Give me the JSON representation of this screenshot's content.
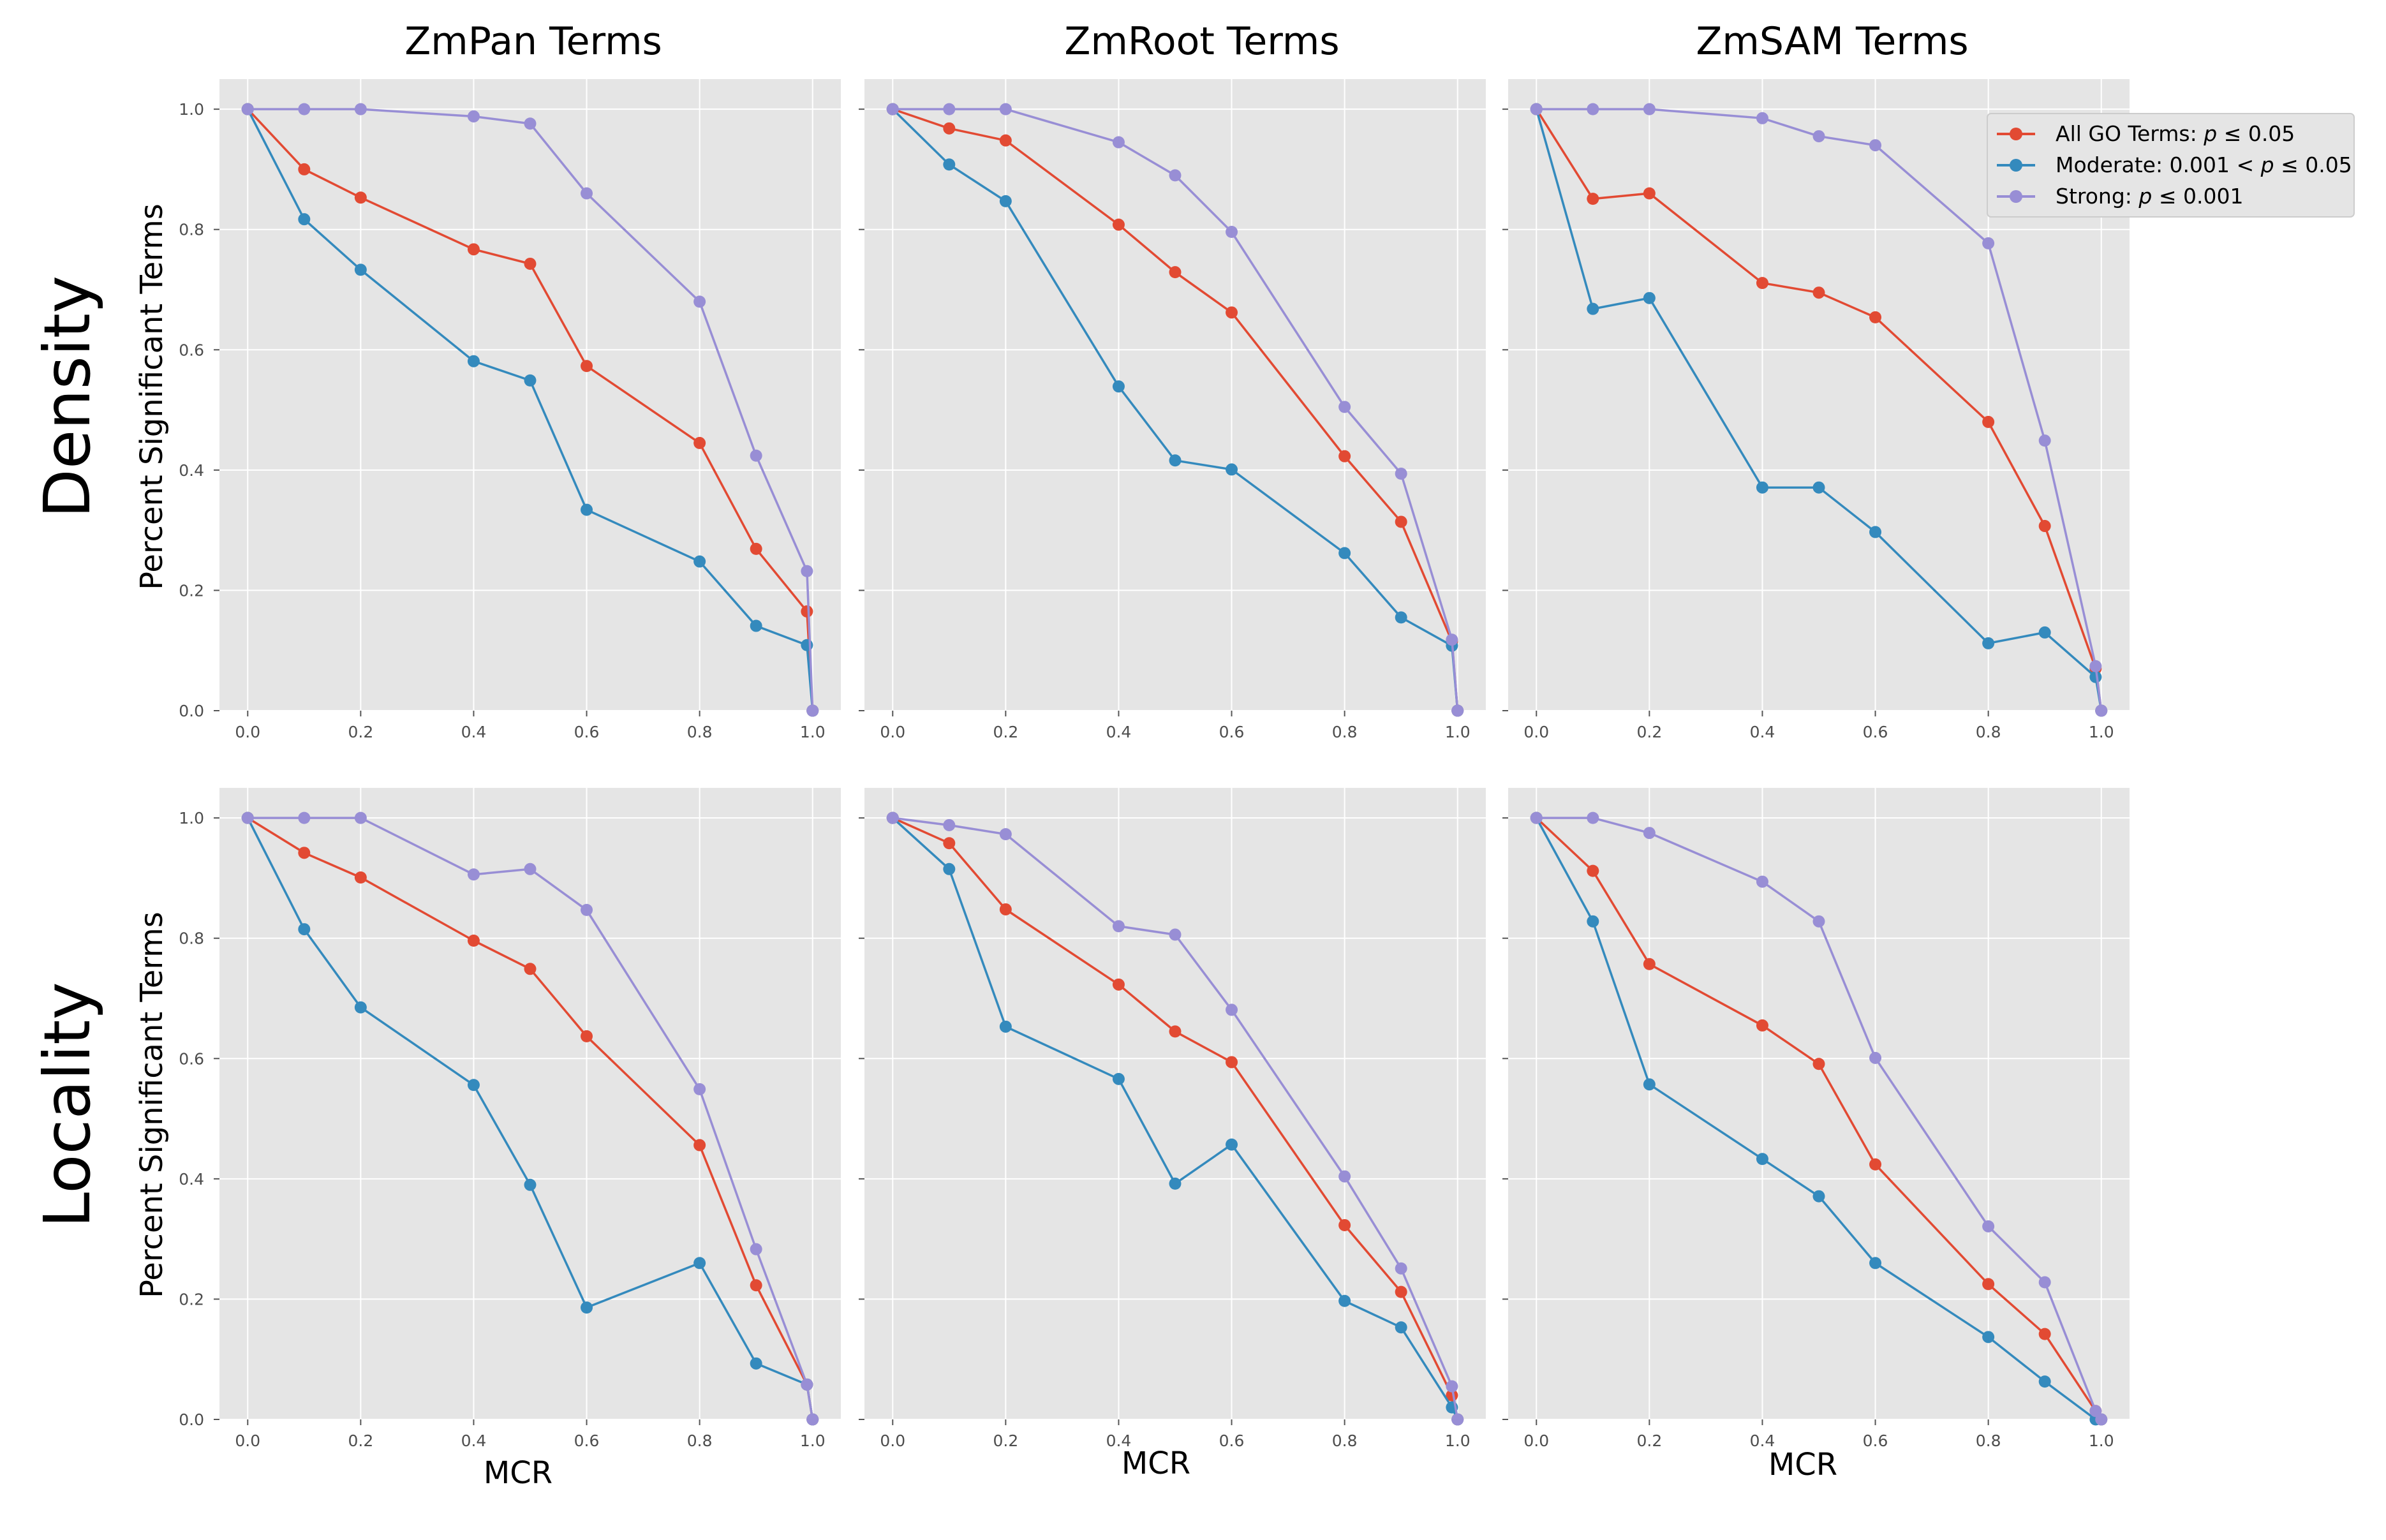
{
  "col_titles": [
    "ZmPan Terms",
    "ZmRoot Terms",
    "ZmSAM Terms"
  ],
  "row_labels": [
    "Density",
    "Locality"
  ],
  "ylabel": "Percent Significant Terms",
  "xlabel": "MCR",
  "legend": {
    "placement": "top-right",
    "entries": [
      {
        "prefix": "All GO Terms: ",
        "pvar": "p",
        "suffix": " ≤ 0.05",
        "color": "#E24A33"
      },
      {
        "prefix": "Moderate: 0.001 < ",
        "pvar": "p",
        "suffix": " ≤ 0.05",
        "color": "#348ABD"
      },
      {
        "prefix": "Strong: ",
        "pvar": "p",
        "suffix": " ≤ 0.001",
        "color": "#988ED5"
      }
    ]
  },
  "style": {
    "background": "#E5E5E5",
    "grid": "#FFFFFF",
    "tick_color": "#555555"
  },
  "chart_data": [
    {
      "type": "line",
      "title": "ZmPan Terms",
      "row": "Density",
      "ylabel": "Percent Significant Terms",
      "xlim": [
        -0.05,
        1.05
      ],
      "ylim": [
        0,
        1.05
      ],
      "grid": true,
      "x": [
        0.0,
        0.1,
        0.2,
        0.4,
        0.5,
        0.6,
        0.8,
        0.9,
        0.99,
        1.0
      ],
      "xticks": [
        "0.0",
        "0.2",
        "0.4",
        "0.6",
        "0.8",
        "1.0"
      ],
      "yticks": [
        "0.0",
        "0.2",
        "0.4",
        "0.6",
        "0.8",
        "1.0"
      ],
      "series": [
        {
          "name": "All GO Terms: p ≤ 0.05",
          "color": "#E24A33",
          "values": [
            1.0,
            0.9,
            0.853,
            0.767,
            0.743,
            0.573,
            0.445,
            0.269,
            0.165,
            0.0
          ]
        },
        {
          "name": "Moderate: 0.001 < p ≤ 0.05",
          "color": "#348ABD",
          "values": [
            1.0,
            0.817,
            0.733,
            0.581,
            0.549,
            0.334,
            0.248,
            0.141,
            0.109,
            0.0
          ]
        },
        {
          "name": "Strong: p ≤ 0.001",
          "color": "#988ED5",
          "values": [
            1.0,
            1.0,
            1.0,
            0.988,
            0.976,
            0.86,
            0.68,
            0.424,
            0.232,
            0.0
          ]
        }
      ]
    },
    {
      "type": "line",
      "title": "ZmRoot Terms",
      "row": "Density",
      "ylabel": "",
      "xlim": [
        -0.05,
        1.05
      ],
      "ylim": [
        0,
        1.05
      ],
      "grid": true,
      "x": [
        0.0,
        0.1,
        0.2,
        0.4,
        0.5,
        0.6,
        0.8,
        0.9,
        0.99,
        1.0
      ],
      "xticks": [
        "0.0",
        "0.2",
        "0.4",
        "0.6",
        "0.8",
        "1.0"
      ],
      "yticks": [],
      "series": [
        {
          "name": "All GO Terms: p ≤ 0.05",
          "color": "#E24A33",
          "values": [
            1.0,
            0.968,
            0.948,
            0.808,
            0.729,
            0.662,
            0.423,
            0.314,
            0.115,
            0.0
          ]
        },
        {
          "name": "Moderate: 0.001 < p ≤ 0.05",
          "color": "#348ABD",
          "values": [
            1.0,
            0.908,
            0.847,
            0.539,
            0.416,
            0.401,
            0.262,
            0.155,
            0.108,
            0.0
          ]
        },
        {
          "name": "Strong: p ≤ 0.001",
          "color": "#988ED5",
          "values": [
            1.0,
            1.0,
            1.0,
            0.945,
            0.89,
            0.796,
            0.505,
            0.394,
            0.118,
            0.0
          ]
        }
      ]
    },
    {
      "type": "line",
      "title": "ZmSAM Terms",
      "row": "Density",
      "ylabel": "",
      "xlim": [
        -0.05,
        1.05
      ],
      "ylim": [
        0,
        1.05
      ],
      "grid": true,
      "x": [
        0.0,
        0.1,
        0.2,
        0.4,
        0.5,
        0.6,
        0.8,
        0.9,
        0.99,
        1.0
      ],
      "xticks": [
        "0.0",
        "0.2",
        "0.4",
        "0.6",
        "0.8",
        "1.0"
      ],
      "yticks": [],
      "series": [
        {
          "name": "All GO Terms: p ≤ 0.05",
          "color": "#E24A33",
          "values": [
            1.0,
            0.851,
            0.86,
            0.711,
            0.695,
            0.654,
            0.48,
            0.307,
            0.07,
            0.0
          ]
        },
        {
          "name": "Moderate: 0.001 < p ≤ 0.05",
          "color": "#348ABD",
          "values": [
            1.0,
            0.668,
            0.686,
            0.371,
            0.371,
            0.297,
            0.112,
            0.13,
            0.056,
            0.0
          ]
        },
        {
          "name": "Strong: p ≤ 0.001",
          "color": "#988ED5",
          "values": [
            1.0,
            1.0,
            1.0,
            0.985,
            0.955,
            0.94,
            0.777,
            0.449,
            0.074,
            0.0
          ]
        }
      ]
    },
    {
      "type": "line",
      "title": "ZmPan Terms",
      "row": "Locality",
      "ylabel": "Percent Significant Terms",
      "xlabel": "MCR",
      "xlim": [
        -0.05,
        1.05
      ],
      "ylim": [
        0,
        1.05
      ],
      "grid": true,
      "x": [
        0.0,
        0.1,
        0.2,
        0.4,
        0.5,
        0.6,
        0.8,
        0.9,
        0.99,
        1.0
      ],
      "xticks": [
        "0.0",
        "0.2",
        "0.4",
        "0.6",
        "0.8",
        "1.0"
      ],
      "yticks": [
        "0.0",
        "0.2",
        "0.4",
        "0.6",
        "0.8",
        "1.0"
      ],
      "series": [
        {
          "name": "All GO Terms: p ≤ 0.05",
          "color": "#E24A33",
          "values": [
            1.0,
            0.942,
            0.901,
            0.796,
            0.749,
            0.637,
            0.456,
            0.223,
            0.058,
            0.0
          ]
        },
        {
          "name": "Moderate: 0.001 < p ≤ 0.05",
          "color": "#348ABD",
          "values": [
            1.0,
            0.815,
            0.685,
            0.556,
            0.39,
            0.186,
            0.26,
            0.093,
            0.058,
            0.0
          ]
        },
        {
          "name": "Strong: p ≤ 0.001",
          "color": "#988ED5",
          "values": [
            1.0,
            1.0,
            1.0,
            0.906,
            0.915,
            0.847,
            0.549,
            0.283,
            0.058,
            0.0
          ]
        }
      ]
    },
    {
      "type": "line",
      "title": "ZmRoot Terms",
      "row": "Locality",
      "ylabel": "",
      "xlabel": "MCR",
      "xlim": [
        -0.05,
        1.05
      ],
      "ylim": [
        0,
        1.05
      ],
      "grid": true,
      "x": [
        0.0,
        0.1,
        0.2,
        0.4,
        0.5,
        0.6,
        0.8,
        0.9,
        0.99,
        1.0
      ],
      "xticks": [
        "0.0",
        "0.2",
        "0.4",
        "0.6",
        "0.8",
        "1.0"
      ],
      "yticks": [],
      "series": [
        {
          "name": "All GO Terms: p ≤ 0.05",
          "color": "#E24A33",
          "values": [
            1.0,
            0.958,
            0.848,
            0.723,
            0.645,
            0.594,
            0.323,
            0.212,
            0.04,
            0.0
          ]
        },
        {
          "name": "Moderate: 0.001 < p ≤ 0.05",
          "color": "#348ABD",
          "values": [
            1.0,
            0.915,
            0.653,
            0.566,
            0.392,
            0.457,
            0.197,
            0.153,
            0.02,
            0.0
          ]
        },
        {
          "name": "Strong: p ≤ 0.001",
          "color": "#988ED5",
          "values": [
            1.0,
            0.988,
            0.973,
            0.82,
            0.806,
            0.681,
            0.404,
            0.251,
            0.055,
            0.0
          ]
        }
      ]
    },
    {
      "type": "line",
      "title": "ZmSAM Terms",
      "row": "Locality",
      "ylabel": "",
      "xlabel": "MCR",
      "xlim": [
        -0.05,
        1.05
      ],
      "ylim": [
        0,
        1.05
      ],
      "grid": true,
      "x": [
        0.0,
        0.1,
        0.2,
        0.4,
        0.5,
        0.6,
        0.8,
        0.9,
        0.99,
        1.0
      ],
      "xticks": [
        "0.0",
        "0.2",
        "0.4",
        "0.6",
        "0.8",
        "1.0"
      ],
      "yticks": [],
      "series": [
        {
          "name": "All GO Terms: p ≤ 0.05",
          "color": "#E24A33",
          "values": [
            1.0,
            0.912,
            0.757,
            0.655,
            0.591,
            0.424,
            0.225,
            0.142,
            0.014,
            0.0
          ]
        },
        {
          "name": "Moderate: 0.001 < p ≤ 0.05",
          "color": "#348ABD",
          "values": [
            1.0,
            0.828,
            0.557,
            0.433,
            0.371,
            0.26,
            0.137,
            0.063,
            0.0,
            0.0
          ]
        },
        {
          "name": "Strong: p ≤ 0.001",
          "color": "#988ED5",
          "values": [
            1.0,
            1.0,
            0.975,
            0.894,
            0.828,
            0.601,
            0.321,
            0.228,
            0.014,
            0.0
          ]
        }
      ]
    }
  ]
}
